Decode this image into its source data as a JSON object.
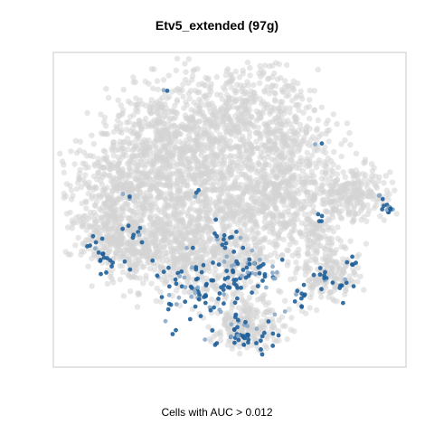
{
  "chart_data": {
    "type": "scatter",
    "title": "Etv5_extended (97g)",
    "caption": "Cells with AUC > 0.012",
    "axes": {
      "visible": false,
      "frame": true
    },
    "colors": {
      "background_cells": "#d3d3d3",
      "high_auc_cells": "#1f5f99",
      "high_auc_light": "#8aa9c7"
    },
    "series": [
      {
        "role": "background",
        "description": "all cells (tSNE), light grey, semi-transparent"
      },
      {
        "role": "highlight",
        "description": "cells above AUC threshold, dark blue"
      }
    ]
  }
}
